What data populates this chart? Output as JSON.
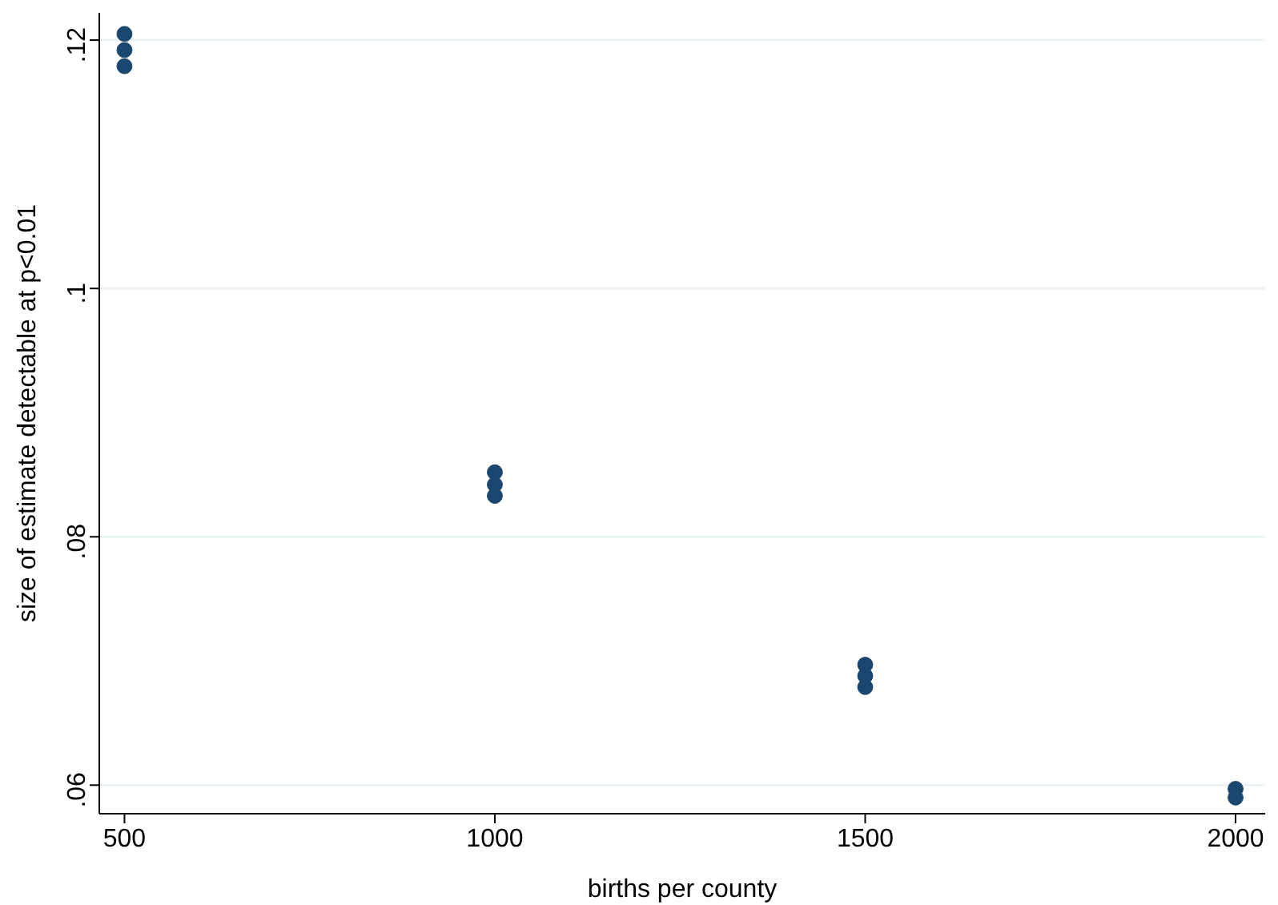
{
  "chart_data": {
    "type": "scatter",
    "xlabel": "births per county",
    "ylabel": "size of estimate detectable at p<0.01",
    "x": [
      500,
      500,
      500,
      1000,
      1000,
      1000,
      1500,
      1500,
      1500,
      2000,
      2000
    ],
    "series": [
      {
        "color": "#1a476f",
        "values": [
          0.1205,
          0.1192,
          0.1179,
          0.0852,
          0.0842,
          0.0833,
          0.0697,
          0.0688,
          0.0679,
          0.0597,
          0.059
        ]
      }
    ],
    "xlim": [
      466,
      2040
    ],
    "xticks": [
      500,
      1000,
      1500,
      2000
    ],
    "ylim": [
      0.0577,
      0.1222
    ],
    "yticks": [
      {
        "value": 0.06,
        "label": ".06"
      },
      {
        "value": 0.08,
        "label": ".08"
      },
      {
        "value": 0.1,
        "label": ".1"
      },
      {
        "value": 0.12,
        "label": ".12"
      }
    ],
    "grid": "y",
    "marker": "circle"
  }
}
